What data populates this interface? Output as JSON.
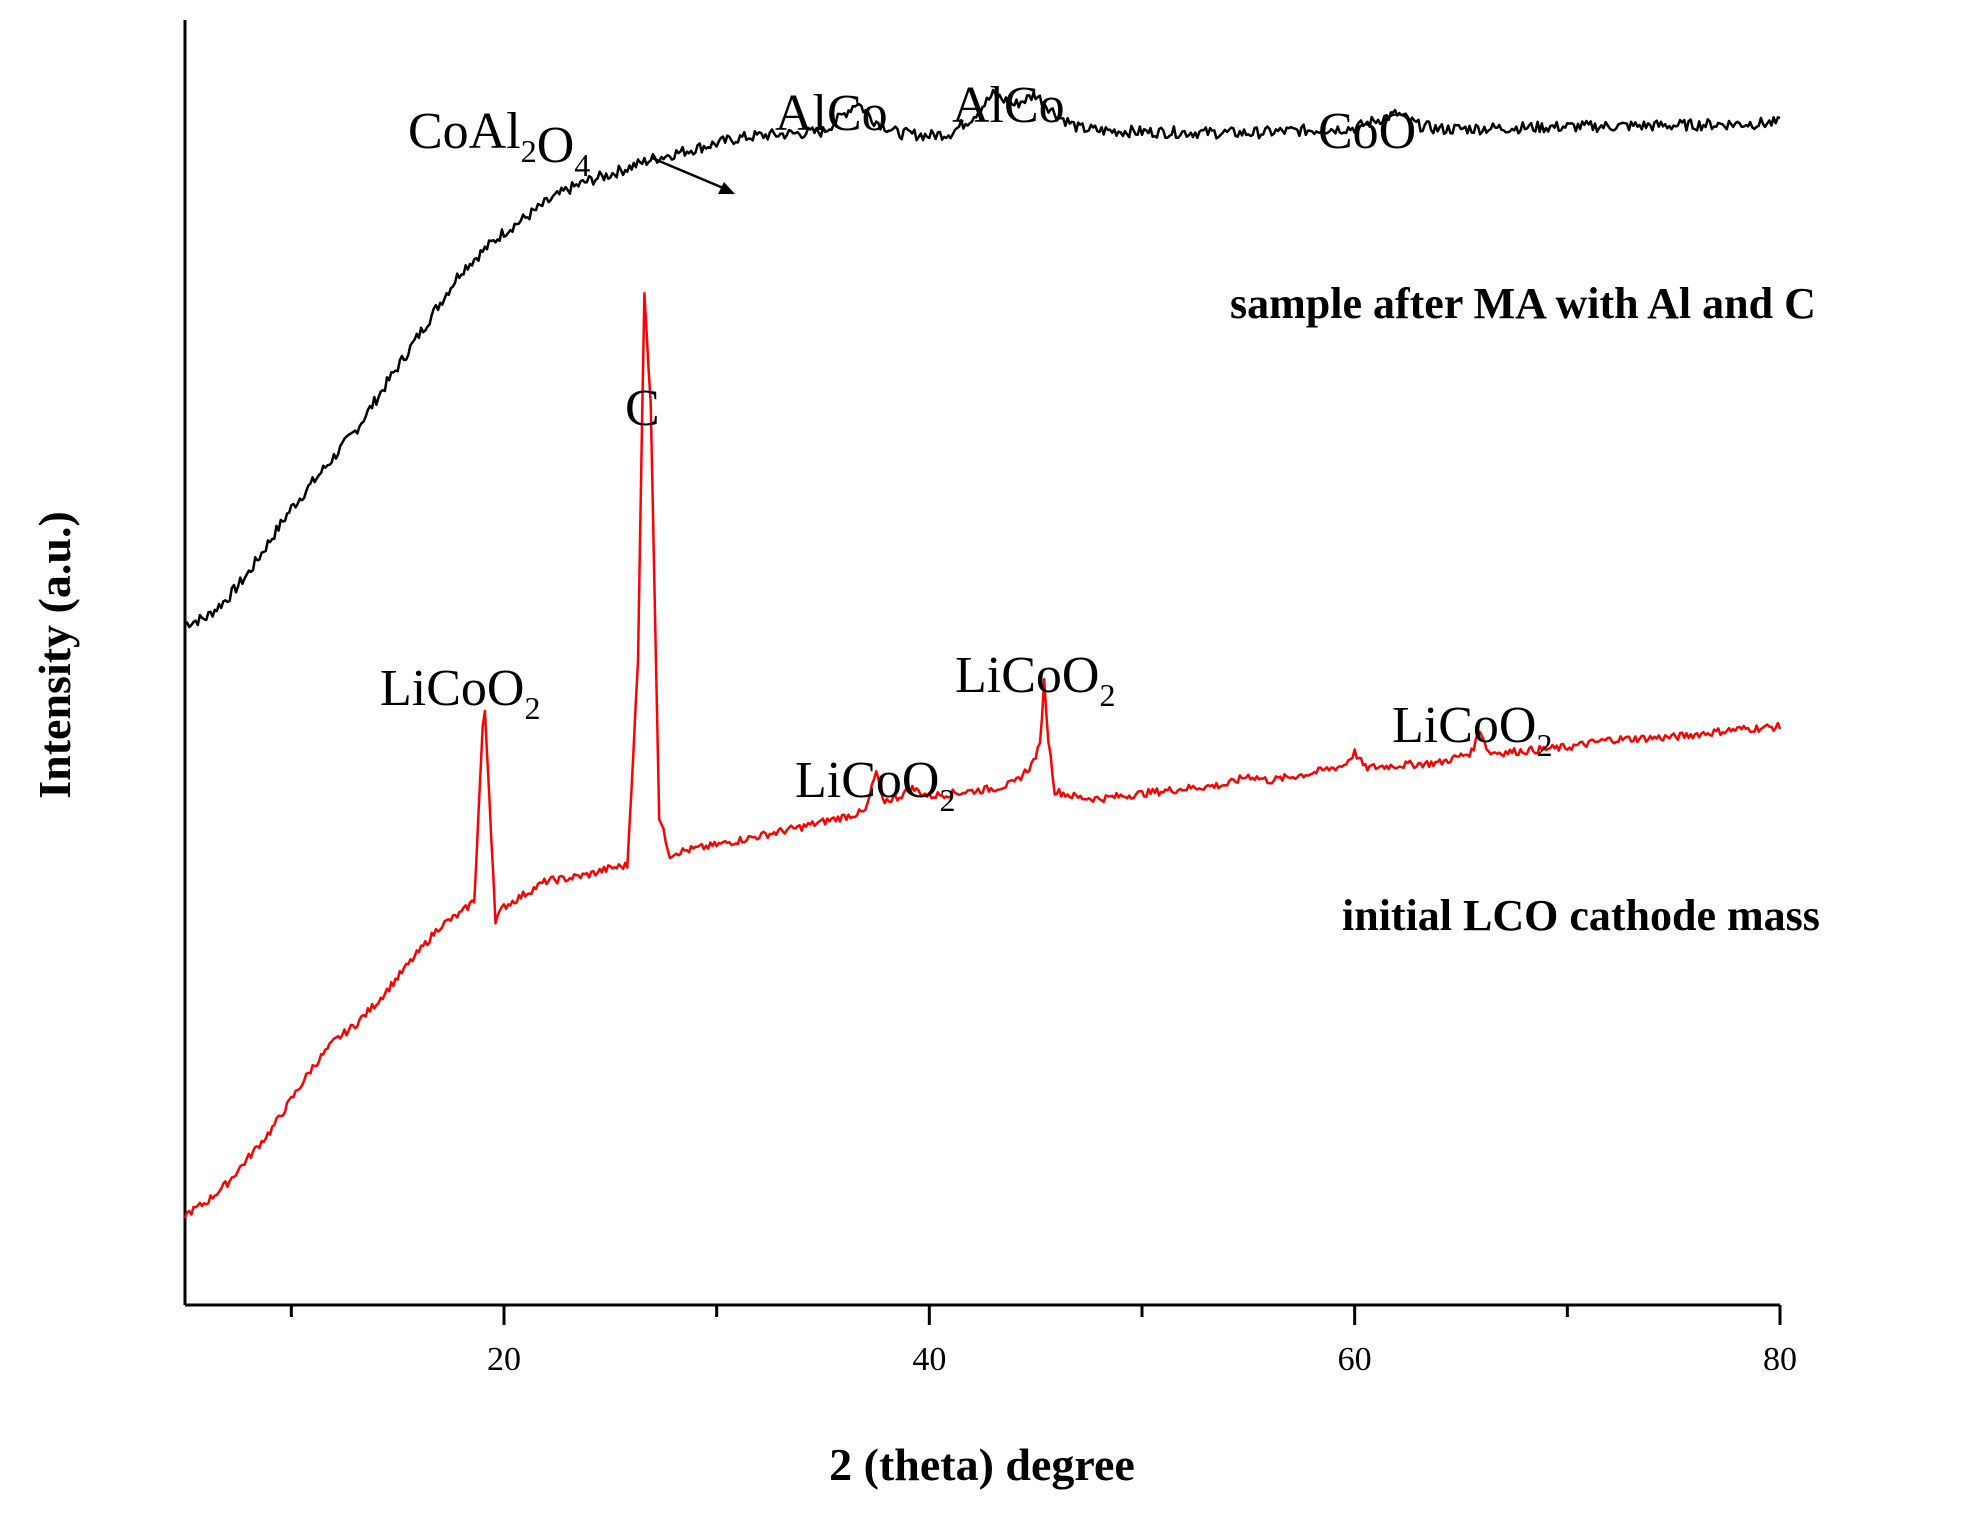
{
  "chart_data": {
    "type": "line",
    "title": "",
    "xlabel": "2 (theta) degree",
    "ylabel": "Intensity (a.u.)",
    "xlim": [
      5,
      80
    ],
    "ylim": [
      0,
      100
    ],
    "x_ticks": [
      20,
      40,
      60,
      80
    ],
    "y_ticks_shown": false,
    "grid": false,
    "legend": "none (series labelled inline)",
    "series": [
      {
        "name": "sample after MA with Al and C",
        "color": "#000000",
        "noise": 0.9,
        "points": [
          [
            5,
            53
          ],
          [
            6,
            53.5
          ],
          [
            7,
            55
          ],
          [
            8,
            57
          ],
          [
            9,
            59.5
          ],
          [
            10,
            62
          ],
          [
            11,
            64
          ],
          [
            12,
            66
          ],
          [
            13,
            68
          ],
          [
            14,
            70.5
          ],
          [
            15,
            73
          ],
          [
            16,
            75.5
          ],
          [
            17,
            78
          ],
          [
            18,
            80.5
          ],
          [
            19,
            82
          ],
          [
            20,
            83.5
          ],
          [
            21,
            84.6
          ],
          [
            22,
            85.8
          ],
          [
            23,
            86.8
          ],
          [
            24,
            87.5
          ],
          [
            25,
            88
          ],
          [
            26,
            88.6
          ],
          [
            27,
            89.2
          ],
          [
            28,
            89.6
          ],
          [
            29,
            90
          ],
          [
            30,
            90.4
          ],
          [
            31,
            90.8
          ],
          [
            32,
            91
          ],
          [
            33,
            91.1
          ],
          [
            34,
            91.2
          ],
          [
            35,
            91.3
          ],
          [
            35.8,
            92.4
          ],
          [
            36.6,
            93.6
          ],
          [
            37.4,
            92.2
          ],
          [
            38.5,
            91.2
          ],
          [
            40,
            91
          ],
          [
            41,
            91.2
          ],
          [
            42,
            92.4
          ],
          [
            43,
            94.2
          ],
          [
            44,
            93.4
          ],
          [
            45,
            94.2
          ],
          [
            46,
            92.6
          ],
          [
            47,
            91.6
          ],
          [
            48,
            91.4
          ],
          [
            50,
            91.3
          ],
          [
            55,
            91.2
          ],
          [
            60,
            91.6
          ],
          [
            61,
            92.2
          ],
          [
            62,
            92.7
          ],
          [
            63,
            91.8
          ],
          [
            64,
            91.5
          ],
          [
            70,
            91.7
          ],
          [
            75,
            91.8
          ],
          [
            80,
            92
          ]
        ]
      },
      {
        "name": "initial LCO cathode mass",
        "color": "#ff0000",
        "noise": 0.6,
        "points": [
          [
            5,
            7
          ],
          [
            6,
            8
          ],
          [
            7,
            9.5
          ],
          [
            8,
            11.5
          ],
          [
            9,
            13.5
          ],
          [
            10,
            16
          ],
          [
            11,
            18.5
          ],
          [
            12,
            20.5
          ],
          [
            13,
            21.8
          ],
          [
            14,
            23.5
          ],
          [
            15,
            25.5
          ],
          [
            16,
            27.5
          ],
          [
            17,
            29.5
          ],
          [
            18,
            30.5
          ],
          [
            18.6,
            31.5
          ],
          [
            19.0,
            45
          ],
          [
            19.1,
            46
          ],
          [
            19.3,
            40
          ],
          [
            19.6,
            30
          ],
          [
            20,
            31
          ],
          [
            21,
            32
          ],
          [
            22,
            33
          ],
          [
            23,
            33.2
          ],
          [
            24,
            33.5
          ],
          [
            25,
            34
          ],
          [
            25.8,
            34.2
          ],
          [
            26.3,
            50
          ],
          [
            26.6,
            79
          ],
          [
            26.9,
            70
          ],
          [
            27.3,
            38
          ],
          [
            27.8,
            35
          ],
          [
            28,
            35.2
          ],
          [
            30,
            35.8
          ],
          [
            32,
            36.5
          ],
          [
            34,
            37.2
          ],
          [
            36,
            38
          ],
          [
            37,
            38.4
          ],
          [
            37.5,
            41.5
          ],
          [
            37.8,
            39.2
          ],
          [
            38.5,
            39.5
          ],
          [
            39.2,
            40.2
          ],
          [
            40,
            39.6
          ],
          [
            42,
            40
          ],
          [
            43,
            40.2
          ],
          [
            44,
            40.6
          ],
          [
            44.8,
            42
          ],
          [
            45.2,
            43.5
          ],
          [
            45.4,
            48.5
          ],
          [
            45.6,
            44
          ],
          [
            45.9,
            40
          ],
          [
            47,
            39.5
          ],
          [
            48,
            39.4
          ],
          [
            50,
            39.8
          ],
          [
            52,
            40.2
          ],
          [
            54,
            40.5
          ],
          [
            55,
            41.2
          ],
          [
            56,
            40.8
          ],
          [
            58,
            41.4
          ],
          [
            59.5,
            42
          ],
          [
            60,
            43
          ],
          [
            60.5,
            41.8
          ],
          [
            62,
            42
          ],
          [
            64,
            42.2
          ],
          [
            65.5,
            43
          ],
          [
            65.9,
            44.8
          ],
          [
            66.3,
            43
          ],
          [
            67,
            43
          ],
          [
            70,
            43.4
          ],
          [
            72,
            44
          ],
          [
            75,
            44.2
          ],
          [
            78,
            44.8
          ],
          [
            80,
            45
          ]
        ]
      }
    ],
    "annotations": [
      {
        "text": "CoAl2O4",
        "pointer": "arrow",
        "x": 31,
        "y": 91
      },
      {
        "text": "AlCo",
        "x": 36.5,
        "y": 93.6
      },
      {
        "text": "AlCo",
        "x": 43,
        "y": 94.2
      },
      {
        "text": "CoO",
        "x": 62,
        "y": 92.7
      },
      {
        "text": "C",
        "x": 26.6,
        "y": 79
      },
      {
        "text": "LiCoO2",
        "x": 19,
        "y": 46
      },
      {
        "text": "LiCoO2",
        "x": 37.5,
        "y": 41.5
      },
      {
        "text": "LiCoO2",
        "x": 45.4,
        "y": 48.5
      },
      {
        "text": "LiCoO2",
        "x": 65.9,
        "y": 44.8
      }
    ]
  }
}
